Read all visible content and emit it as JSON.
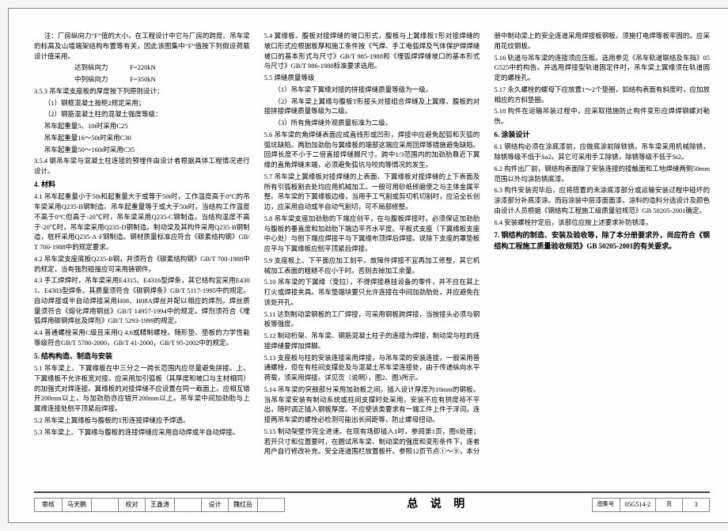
{
  "doc": {
    "intro": "注：厂房纵向力“F”值的大小，在工程设计中它与厂房的跨度、吊车梁的标高及山墙端架结构布置等有关，因此该图集中“F”值按下列假设荷载设计值采用。",
    "force1_label": "达到纵向力",
    "force1_val": "F=220kN",
    "force2_label": "中列纵向力",
    "force2_val": "F=350kN",
    "s3_5_3": "3.5.3 吊车梁支座板的厚度按下列原则设计：",
    "s3_5_3_1": "（1）钢框混凝土按柜2规定采用；",
    "s3_5_3_2": "（2）钢筋混凝土柱的混凝土强度等级：",
    "crane_15": "吊车起重量5、10t时采用C25",
    "crane_16_50": "吊车起重量16～50t时采用C30",
    "crane_50_160": "吊车起重量50～160t时采用C35",
    "s3_5_4": "3.5.4 钢吊车梁与混凝土柱连接的预埋件由设计者根据具体工程情况进行设计。",
    "h4": "4. 材料",
    "s4_1": "4.1 吊车起重量小于50t和起重量大于或等于50t时，工作温度高于0°C的吊车梁采用Q235-B钢制造。吊车起重量等于或大于50t时，当结构工作温度不高于0°C但高于-20℃时，吊车梁采用Q235-C钢制造。当结构温度不高于-20℃时，吊车梁采用Q235-D钢制造。制动梁及其构件采用Q235-B钢制造，桩杆采用Q235-A·F钢制造。钢材质量标准应符合《碳素结构钢》GB/T 700-1988中的规定要求。",
    "s4_2": "4.2 吊车梁支座底板Q235-B钢，并须符合《碳素结构钢》GB/T 700-1988中的规定，当有强烈碰撞应可采用铸钢件。",
    "s4_3": "4.3 手工焊焊时，吊车梁采用E4315、E4316型焊条，其它结构宜采用E4301、E4303型焊条。其质量须符合《碳钢焊条》GB/T 5117-1995中的规定。自动焊接或半自动焊接采用H08、H08A焊丝并配以相应的焊剂。焊丝质量须符合《熔化焊用钢丝》GB/T 14957-1994中的规定。焊剂须符合《埋弧焊用碳钢焊丝及焊剂》GB/T 5293-1999的规定。",
    "s4_4": "4.4 普通螺栓采用C级且采用Q 4.6或精制螺栓。随形垫、垫板的力学性能等级符合GB/T 5780-2000，GB/T 41-2000，GB/T 95-2002中的规定。",
    "h5": "5. 结构构造、制造与安装",
    "s5_1": "5.1 吊车梁上、下翼缘板在中三分之一跨长范围内应尽量避免拼接。上、下翼缘板不允许板宽对接。应采用加引弧板（其厚度和坡口与主材相同）的加强式对焊连接。翼缘板的对接焊缝不应设置在同一截面上。应相互错开200mm以上，与加劲肋亦应错开200mm以上。吊车梁中间加劲肋与上翼缘连接处刨平顶紧后焊接。",
    "s5_2": "5.2 吊车梁上翼缘板与腹板的T形连接焊缝应予焊透。",
    "s5_3": "5.3 吊车梁上、下翼缘与腹板的连接焊缝应采用自动焊或半自动焊接。",
    "s5_4": "5.4 翼缘板、腹板对接焊缝的坡口形式，腹板与上翼缘板T形对接焊缝的坡口形式应根据板厚和施工条件按《气焊、手工电弧焊及气体保护焊焊缝坡口的基本形式与尺寸》GB/T 985-1988和《埋弧焊焊缝坡口的基本形式与尺寸》GB/T 986-1988标准要求选用。",
    "s5_5": "5.5 焊缝质量等级",
    "s5_5_1": "（1）吊车梁下翼缘对接的拼接焊缝质量等级为一级。",
    "s5_5_2": "（2）吊车梁上翼缘与腹板T形接头对接组合焊缝及上翼缘、腹板的对接拼接焊缝质量等级为二级。",
    "s5_5_3": "（3）所有角焊缝外观质量标准为二级。",
    "s5_6": "5.6 吊车梁的角焊缝表面应成直线形或凹形，焊接中应避免起弧和灭弧的弧坑缺陷。两肋加劲肋与翼缘板的端部这端应采用回焊等措施避免缺陷。回焊长度不小于二倍直接焊缝脚尺寸。跨中1/3范围内的加劲肋靠近下翼缘的直角焊缝末端，必须避免弧坑与咬肉等情况的发生。",
    "s5_7": "5.7 吊车梁上翼缘板对接焊缝的上表面、下翼缘板对接焊缝的上下表面及所有引弧板割去处均应用机械加工。一般可用砂纸修磨使之与主体金属平整。吊车梁的下翼缘板边缘，当用手工气割或剪切机切割时，应沿全长创边，应采用自动或半自动气割切，可不局部修整。",
    "s5_8": "5.8 吊车梁支座加劲肋的下端应创平，在与腹板焊接时，必须保证加劲肋与腹板的垂直度和加劲肋下端边平齐水平度。平板式支座（下翼缘板支座中心处）与刨下端应焊接平与下翼缘布顶焊后焊接。说除下支座的罩垫板应平与下翼缘板应刨平顶紧后焊接。",
    "s5_9": "5.9 支座板上、下平面应加工刻平。故障件焊接不宜再加工修整，其它机械加工表面的粗糙不应小于时。否则去掉加工余量。",
    "s5_10": "5.10 吊车梁的下翼缘（受拉），不得焊接悬挂设备的零件，并不应在其上打火或焊接夹具。吊车垫端块要只允许连接在中间加劲肋处，并应避免在该处开孔。",
    "s5_11": "5.11 达到制动梁钢板的工厂焊接，可采用钢板跨焊接，当按接头必须与钢板等强度。",
    "s5_12": "5.12 制动桁架、吊车梁、钢筋混凝土柱子的连接为焊接，制动梁与柱的连接焊缝要焊加焊脚。",
    "s5_13": "5.13 支座板与柱的安装连接采用焊接，与吊车梁的安装连接，一般采用普通螺栓，但在有柱间支撑处及与混凝土吊车梁连接处，由于传递纵向水平荷载，须采用焊接。详见页（说明），图2、图3所示。",
    "s5_14": "5.14 吊车梁的突鼓部分采用加劲板之间，插入设计厚度为10mm的钢板。当吊车梁安装有制动系统或柱间支撑时处采用，安装不应有拱度将不平出，随时调正插入钢板厚度。不应使该类要求有一端工件上件于浮词，连接两吊车梁的螺栓必检测可能出长间距等，防止螺母扭动。",
    "s5_15": "5.15 制动架壁作完全进速。在现有场即插入1时，参阅第1页，图6处理；若开只寸和位置要时，在圆试吊车梁、制动梁的强度和变形条件下，连者用户自行修改补充。安全连道围栏放置板杆。参照12页节点①～⑨，本分册中制动梁上的安全连道采用焊接板钢板。须施打电焊等板牢固的。应采用花纹钢板。",
    "s5_16": "5.16 轨道与吊车梁的连接须应压板。选用参见《吊车轨道联结及车挡》05G525中的构告。并选用焊接型轨道固定件时，吊车梁上翼缘须在轨道固定的螺栓孔。",
    "s5_17": "5.17 永久螺栓的螺母下应放置1～2个垫圈，如结构表面有斜度时，应加放相应的方斜垫圈。",
    "s5_18": "5.18 构件在运输吊装过程中，应采取措施防止构件变形应焊焊钢螺对勒伤。",
    "h6": "6. 涂装设计",
    "s6_1": "6.1 钢结构必须在涂底漆前，应做底涂前除铁锈。吊车梁采用机械除锈，除锈等级不低于Sa2。其它可采用手工除锈，除锈等级不低于St2。",
    "s6_2": "6.2 构件出厂前，钢结构表面除了安装连接的接触面和工地焊缝两侧50mm范围以外均涂防锈底漆。",
    "s6_3": "6.3 构件安装完毕后，应将搭置的未涂底漆部分或运输安装过程中碰坏的涂漆部分补底漆涂。而后涂装中层漆面面漆。涂料的造料分选设计及颜色由设计人员根据《钢结构工程施工级质量验规范》GB 50205-2001确定。",
    "s6_4": "6.4 安装螺栓拧定后，该部位应按上述要求补防锈漆。",
    "h7": "7. 钢结构的制造、安装及验收等，除了本分册要求外，尚应符合《钢结构工程施工质量验收规范》GB 50205-2001的有关要求。",
    "footer_title": "总 说 明",
    "drawing_set": "图集号",
    "drawing_set_val": "05G514-2",
    "page_label": "页",
    "page_val": "3",
    "role1": "审核",
    "name1": "马天鹏",
    "role2": "校对",
    "name2": "王鑫涛",
    "role3": "设计",
    "name3": "魏红岳"
  }
}
